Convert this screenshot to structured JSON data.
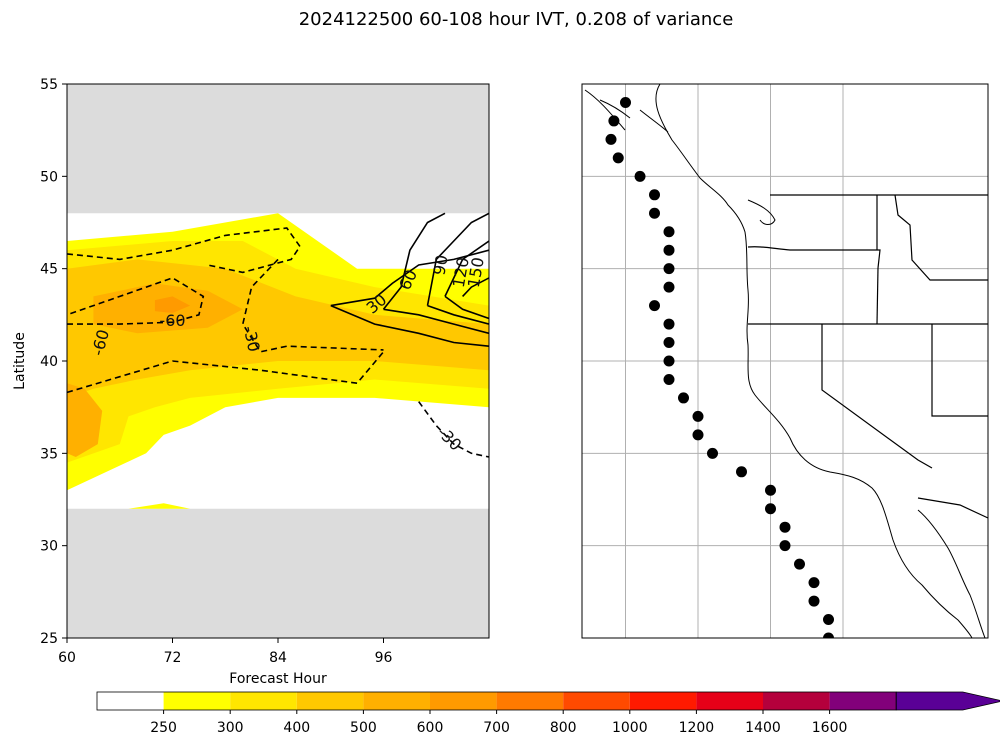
{
  "title": "2024122500 60-108 hour IVT, 0.208 of variance",
  "chart_data": [
    {
      "type": "contour",
      "xlabel": "Forecast Hour",
      "ylabel": "Latitude",
      "xlim": [
        60,
        108
      ],
      "ylim": [
        25,
        55
      ],
      "xticks": [
        60,
        72,
        84,
        96
      ],
      "yticks": [
        25,
        30,
        35,
        40,
        45,
        50,
        55
      ],
      "masked_lat_ranges": [
        [
          25,
          32
        ],
        [
          48,
          55
        ]
      ],
      "filled_field": "IVT",
      "filled_regions": [
        {
          "level": 250,
          "color": "#ffff00",
          "points": [
            [
              60,
              46.5
            ],
            [
              72,
              47
            ],
            [
              84,
              48
            ],
            [
              93,
              45
            ],
            [
              108,
              45
            ],
            [
              108,
              37.5
            ],
            [
              95,
              38
            ],
            [
              84,
              38
            ],
            [
              78,
              37.5
            ],
            [
              74,
              36.5
            ],
            [
              71,
              36
            ],
            [
              69,
              35
            ],
            [
              60,
              33
            ]
          ]
        },
        {
          "level": 250,
          "color": "#ffff00",
          "points": [
            [
              67,
              32
            ],
            [
              71,
              32.3
            ],
            [
              74,
              32
            ]
          ]
        },
        {
          "level": 300,
          "color": "#ffe600",
          "points": [
            [
              60,
              46
            ],
            [
              72,
              46.5
            ],
            [
              80,
              46.5
            ],
            [
              86,
              45
            ],
            [
              95,
              44
            ],
            [
              108,
              43
            ],
            [
              108,
              38.5
            ],
            [
              95,
              39
            ],
            [
              84,
              38.5
            ],
            [
              74,
              38
            ],
            [
              70,
              37.5
            ],
            [
              67,
              37
            ],
            [
              66,
              35.5
            ],
            [
              60,
              34.5
            ]
          ]
        },
        {
          "level": 400,
          "color": "#ffc800",
          "points": [
            [
              60,
              45
            ],
            [
              68,
              45.5
            ],
            [
              78,
              45
            ],
            [
              86,
              43.5
            ],
            [
              95,
              42.5
            ],
            [
              108,
              42
            ],
            [
              108,
              39.5
            ],
            [
              95,
              40
            ],
            [
              84,
              40
            ],
            [
              74,
              39.5
            ],
            [
              68,
              39
            ],
            [
              63,
              38.5
            ],
            [
              60,
              38
            ]
          ]
        },
        {
          "level": 500,
          "color": "#ffb000",
          "points": [
            [
              63,
              43.5
            ],
            [
              70,
              44.2
            ],
            [
              76,
              43.8
            ],
            [
              80,
              42.8
            ],
            [
              76,
              41.8
            ],
            [
              68,
              41.5
            ],
            [
              63,
              42
            ]
          ]
        },
        {
          "level": 500,
          "color": "#ffb000",
          "points": [
            [
              60,
              38.8
            ],
            [
              62,
              38.5
            ],
            [
              64,
              37.3
            ],
            [
              63.5,
              35.5
            ],
            [
              61,
              34.8
            ],
            [
              60,
              35
            ]
          ]
        },
        {
          "level": 600,
          "color": "#ff9a00",
          "points": [
            [
              70,
              43.3
            ],
            [
              72,
              43.5
            ],
            [
              74,
              43
            ],
            [
              72,
              42.6
            ],
            [
              70,
              42.7
            ]
          ]
        }
      ],
      "contours": [
        {
          "label": "-60",
          "style": "dashed",
          "points": [
            [
              60,
              42
            ],
            [
              66,
              42
            ],
            [
              72,
              42.1
            ],
            [
              75,
              42.5
            ],
            [
              75.5,
              43.5
            ],
            [
              72,
              44.5
            ],
            [
              66,
              43.5
            ],
            [
              60,
              42.5
            ]
          ]
        },
        {
          "label": "-60",
          "style": "dashed",
          "points": [
            [
              60,
              45.8
            ],
            [
              66,
              45.5
            ],
            [
              72,
              46
            ],
            [
              78,
              46.8
            ],
            [
              85,
              47.2
            ],
            [
              86.5,
              46.2
            ],
            [
              85.5,
              45.5
            ],
            [
              80,
              44.8
            ],
            [
              76,
              45.2
            ]
          ]
        },
        {
          "label": "-60",
          "style": "dashed",
          "points": [
            [
              60,
              38.3
            ],
            [
              72,
              40
            ],
            [
              82,
              39.5
            ],
            [
              93,
              38.8
            ],
            [
              96,
              40.5
            ]
          ]
        },
        {
          "label": "-30",
          "style": "dashed",
          "points": [
            [
              84,
              45.5
            ],
            [
              81,
              44
            ],
            [
              80,
              42
            ],
            [
              82,
              40.5
            ],
            [
              85,
              40.8
            ],
            [
              96,
              40.6
            ]
          ]
        },
        {
          "label": "-30",
          "style": "dashed",
          "points": [
            [
              100,
              37.8
            ],
            [
              102,
              36.5
            ],
            [
              104,
              35.5
            ],
            [
              106,
              35
            ],
            [
              108,
              34.8
            ]
          ]
        },
        {
          "label": "30",
          "style": "solid",
          "points": [
            [
              90,
              43
            ],
            [
              95,
              42
            ],
            [
              100,
              41.5
            ],
            [
              104,
              41
            ],
            [
              108,
              40.8
            ]
          ]
        },
        {
          "label": "30",
          "style": "solid",
          "points": [
            [
              90,
              43
            ],
            [
              95,
              43.4
            ],
            [
              97,
              44.2
            ],
            [
              100,
              45.2
            ],
            [
              104,
              45.5
            ],
            [
              108,
              46
            ]
          ]
        },
        {
          "label": "60",
          "style": "solid",
          "points": [
            [
              96,
              42.8
            ],
            [
              100,
              42.5
            ],
            [
              104,
              42
            ],
            [
              108,
              41.5
            ]
          ]
        },
        {
          "label": "60",
          "style": "solid",
          "points": [
            [
              96,
              42.8
            ],
            [
              98,
              44
            ],
            [
              99,
              46
            ],
            [
              101,
              47.5
            ],
            [
              103,
              48
            ]
          ]
        },
        {
          "label": "90",
          "style": "solid",
          "points": [
            [
              101,
              43
            ],
            [
              104,
              42.5
            ],
            [
              108,
              42
            ]
          ]
        },
        {
          "label": "90",
          "style": "solid",
          "points": [
            [
              101,
              43
            ],
            [
              102,
              45.5
            ],
            [
              104,
              46.5
            ],
            [
              106,
              47.5
            ],
            [
              108,
              48
            ]
          ]
        },
        {
          "label": "120",
          "style": "solid",
          "points": [
            [
              103,
              43.5
            ],
            [
              105,
              42.8
            ],
            [
              108,
              42.3
            ]
          ]
        },
        {
          "label": "120",
          "style": "solid",
          "points": [
            [
              103,
              43.5
            ],
            [
              105,
              45.5
            ],
            [
              108,
              46.5
            ]
          ]
        },
        {
          "label": "150",
          "style": "solid",
          "points": [
            [
              105,
              43.5
            ],
            [
              106,
              44
            ],
            [
              108,
              44.5
            ]
          ]
        }
      ],
      "contour_labels": [
        {
          "text": "-60",
          "x": 72,
          "y": 42.2,
          "rot": 0
        },
        {
          "text": "-60",
          "x": 63.8,
          "y": 41,
          "rot": -75
        },
        {
          "text": "-30",
          "x": 81,
          "y": 41.2,
          "rot": 78
        },
        {
          "text": "-30",
          "x": 103.5,
          "y": 35.8,
          "rot": 45
        },
        {
          "text": "30",
          "x": 95.2,
          "y": 43.1,
          "rot": -40
        },
        {
          "text": "60",
          "x": 98.8,
          "y": 44.4,
          "rot": -65
        },
        {
          "text": "90",
          "x": 102.5,
          "y": 45.2,
          "rot": -80
        },
        {
          "text": "120",
          "x": 104.8,
          "y": 44.8,
          "rot": -80
        },
        {
          "text": "150",
          "x": 106.5,
          "y": 44.8,
          "rot": -80
        }
      ]
    },
    {
      "type": "map",
      "lon_range": [
        -130,
        -102
      ],
      "lat_range": [
        25,
        55
      ],
      "gridlines": {
        "lons": [
          -127,
          -122,
          -117,
          -112
        ],
        "lats": [
          30,
          35,
          40,
          45,
          50
        ]
      },
      "points": [
        {
          "lon": -127,
          "lat": 54
        },
        {
          "lon": -127.8,
          "lat": 53
        },
        {
          "lon": -128,
          "lat": 52
        },
        {
          "lon": -127.5,
          "lat": 51
        },
        {
          "lon": -126,
          "lat": 50
        },
        {
          "lon": -125,
          "lat": 49
        },
        {
          "lon": -125,
          "lat": 48
        },
        {
          "lon": -124,
          "lat": 47
        },
        {
          "lon": -124,
          "lat": 46
        },
        {
          "lon": -124,
          "lat": 45
        },
        {
          "lon": -124,
          "lat": 44
        },
        {
          "lon": -125,
          "lat": 43
        },
        {
          "lon": -124,
          "lat": 42
        },
        {
          "lon": -124,
          "lat": 41
        },
        {
          "lon": -124,
          "lat": 40
        },
        {
          "lon": -124,
          "lat": 39
        },
        {
          "lon": -123,
          "lat": 38
        },
        {
          "lon": -122,
          "lat": 37
        },
        {
          "lon": -122,
          "lat": 36
        },
        {
          "lon": -121,
          "lat": 35
        },
        {
          "lon": -119,
          "lat": 34
        },
        {
          "lon": -117,
          "lat": 33
        },
        {
          "lon": -117,
          "lat": 32
        },
        {
          "lon": -116,
          "lat": 31
        },
        {
          "lon": -116,
          "lat": 30
        },
        {
          "lon": -115,
          "lat": 29
        },
        {
          "lon": -114,
          "lat": 28
        },
        {
          "lon": -114,
          "lat": 27
        },
        {
          "lon": -113,
          "lat": 26
        },
        {
          "lon": -113,
          "lat": 25
        }
      ]
    },
    {
      "type": "colorbar",
      "levels": [
        0,
        250,
        300,
        400,
        500,
        600,
        700,
        800,
        1000,
        1200,
        1400,
        1600
      ],
      "tick_labels": [
        "250",
        "300",
        "400",
        "500",
        "600",
        "700",
        "800",
        "1000",
        "1200",
        "1400",
        "1600"
      ],
      "colors": [
        "#ffffff",
        "#ffff00",
        "#ffe600",
        "#ffc800",
        "#ffb000",
        "#ff9a00",
        "#ff7a00",
        "#ff4a00",
        "#ff1a00",
        "#e60018",
        "#b4003c",
        "#82007a",
        "#5a0096"
      ],
      "extend": "max"
    }
  ]
}
